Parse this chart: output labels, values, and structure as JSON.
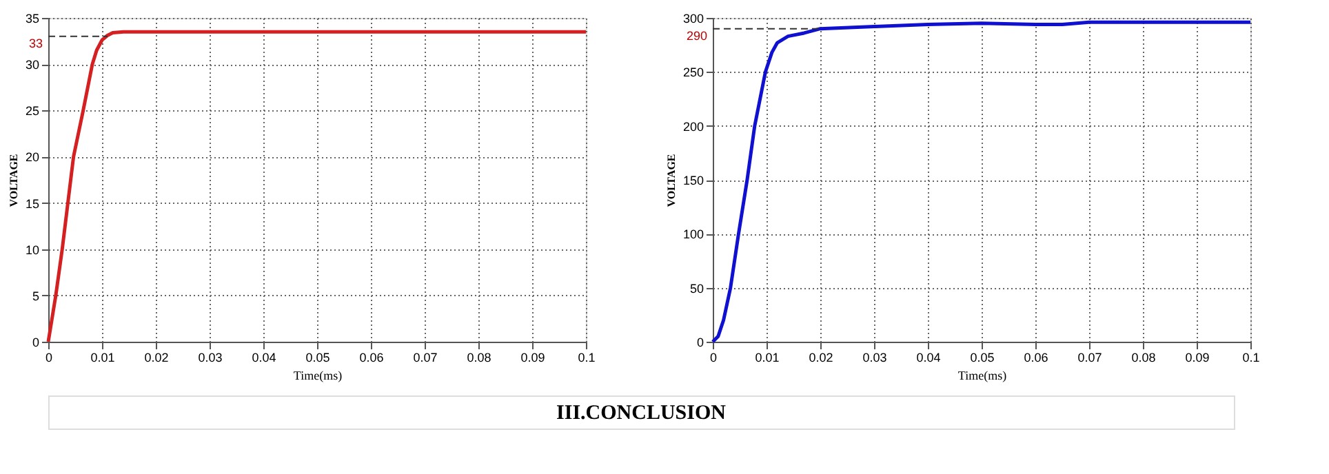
{
  "chart_data": [
    {
      "type": "line",
      "xlabel": "Time(ms)",
      "ylabel": "VOLTAGE",
      "xlim": [
        0,
        0.1
      ],
      "xticks": [
        0,
        0.01,
        0.02,
        0.03,
        0.04,
        0.05,
        0.06,
        0.07,
        0.08,
        0.09,
        0.1
      ],
      "ylim": [
        0,
        35
      ],
      "yticks": [
        0,
        5,
        10,
        15,
        20,
        25,
        30,
        35
      ],
      "grid": true,
      "series": [
        {
          "color": "#d42020",
          "x": [
            0,
            0.0014,
            0.0026,
            0.0047,
            0.0065,
            0.0082,
            0.009,
            0.01,
            0.011,
            0.012,
            0.014,
            0.02,
            0.05,
            0.1
          ],
          "values": [
            0,
            5,
            10,
            20,
            25,
            30,
            31.5,
            32.6,
            33.1,
            33.4,
            33.5,
            33.5,
            33.5,
            33.5
          ]
        }
      ],
      "ref_lines": [
        {
          "axis": "y",
          "value": 33,
          "label": "33",
          "color": "#333333",
          "line_style": "dashed"
        }
      ]
    },
    {
      "type": "line",
      "xlabel": "Time(ms)",
      "ylabel": "VOLTAGE",
      "xlim": [
        0,
        0.1
      ],
      "xticks": [
        0,
        0.01,
        0.02,
        0.03,
        0.04,
        0.05,
        0.06,
        0.07,
        0.08,
        0.09,
        0.1
      ],
      "ylim": [
        0,
        300
      ],
      "yticks": [
        0,
        50,
        100,
        150,
        200,
        250,
        300
      ],
      "grid": true,
      "series": [
        {
          "color": "#1010d0",
          "x": [
            0,
            0.001,
            0.002,
            0.0033,
            0.0048,
            0.0064,
            0.0078,
            0.0098,
            0.011,
            0.012,
            0.014,
            0.017,
            0.02,
            0.03,
            0.04,
            0.05,
            0.06,
            0.065,
            0.07,
            0.08,
            0.1
          ],
          "values": [
            0,
            5,
            20,
            50,
            100,
            150,
            200,
            250,
            268,
            277,
            283,
            286,
            290,
            292,
            294,
            295,
            294,
            294,
            296,
            296,
            296
          ]
        }
      ],
      "ref_lines": [
        {
          "axis": "y",
          "value": 290,
          "label": "290",
          "color": "#333333",
          "line_style": "dashed"
        }
      ],
      "annotations": [
        "III.CONCLUSION"
      ]
    }
  ]
}
